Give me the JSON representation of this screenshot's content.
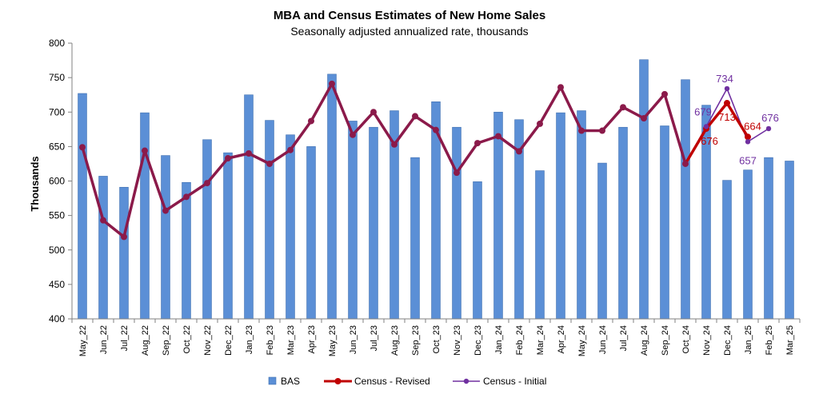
{
  "chart_data": {
    "type": "bar",
    "title": "MBA and Census Estimates of New Home Sales",
    "subtitle": "Seasonally adjusted annualized  rate, thousands",
    "ylabel": "Thousands",
    "xlabel": "",
    "ylim": [
      400,
      800
    ],
    "yticks": [
      "400",
      "450",
      "500",
      "550",
      "600",
      "650",
      "700",
      "750",
      "800"
    ],
    "grid": false,
    "legend_position": "bottom",
    "categories": [
      "May_22",
      "Jun_22",
      "Jul_22",
      "Aug_22",
      "Sep_22",
      "Oct_22",
      "Nov_22",
      "Dec_22",
      "Jan_23",
      "Feb_23",
      "Mar_23",
      "Apr_23",
      "May_23",
      "Jun_23",
      "Jul_23",
      "Aug_23",
      "Sep_23",
      "Oct_23",
      "Nov_23",
      "Dec_23",
      "Jan_24",
      "Feb_24",
      "Mar_24",
      "Apr_24",
      "May_24",
      "Jun_24",
      "Jul_24",
      "Aug_24",
      "Sep_24",
      "Oct_24",
      "Nov_24",
      "Dec_24",
      "Jan_25",
      "Feb_25",
      "Mar_25"
    ],
    "series": [
      {
        "name": "BAS",
        "kind": "bar",
        "color": "#5b8fd6",
        "values": [
          727,
          607,
          591,
          699,
          637,
          598,
          660,
          641,
          725,
          688,
          667,
          650,
          755,
          687,
          678,
          702,
          634,
          715,
          678,
          599,
          700,
          689,
          615,
          699,
          702,
          626,
          678,
          776,
          680,
          747,
          710,
          601,
          616,
          634,
          629
        ]
      },
      {
        "name": "Census - Revised",
        "kind": "line",
        "color": "#c00000",
        "values": [
          649,
          543,
          519,
          644,
          557,
          577,
          597,
          633,
          640,
          625,
          645,
          687,
          741,
          667,
          700,
          653,
          694,
          674,
          612,
          655,
          665,
          643,
          683,
          736,
          673,
          673,
          707,
          691,
          726,
          625,
          676,
          713,
          664,
          null,
          null
        ]
      },
      {
        "name": "Census - Initial",
        "kind": "line",
        "color": "#7030a0",
        "values": [
          649,
          543,
          519,
          644,
          557,
          577,
          597,
          633,
          640,
          625,
          645,
          687,
          741,
          667,
          700,
          653,
          694,
          674,
          612,
          655,
          665,
          643,
          683,
          736,
          673,
          673,
          707,
          691,
          726,
          625,
          679,
          734,
          657,
          676,
          null
        ]
      }
    ],
    "data_labels": [
      {
        "series": "Census - Initial",
        "category": "Nov_24",
        "text": "679"
      },
      {
        "series": "Census - Revised",
        "category": "Nov_24",
        "text": "676"
      },
      {
        "series": "Census - Revised",
        "category": "Dec_24",
        "text": "713"
      },
      {
        "series": "Census - Initial",
        "category": "Dec_24",
        "text": "734"
      },
      {
        "series": "Census - Revised",
        "category": "Jan_25",
        "text": "664"
      },
      {
        "series": "Census - Initial",
        "category": "Jan_25",
        "text": "657"
      },
      {
        "series": "Census - Initial",
        "category": "Feb_25",
        "text": "676"
      }
    ],
    "colors": {
      "line_smooth": "#8b1a4a",
      "axis": "#808080",
      "revised_label": "#c00000",
      "initial_label": "#7030a0"
    }
  }
}
